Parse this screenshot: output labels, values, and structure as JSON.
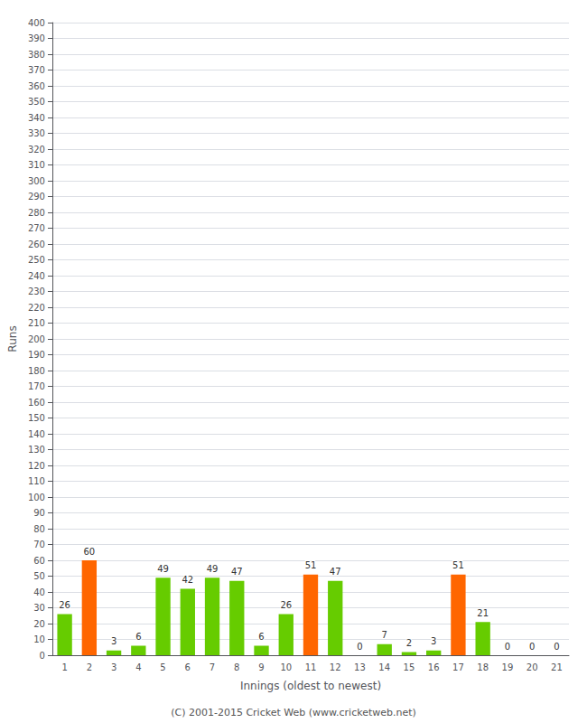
{
  "chart_data": {
    "type": "bar",
    "xlabel": "Innings (oldest to newest)",
    "ylabel": "Runs",
    "categories": [
      "1",
      "2",
      "3",
      "4",
      "5",
      "6",
      "7",
      "8",
      "9",
      "10",
      "11",
      "12",
      "13",
      "14",
      "15",
      "16",
      "17",
      "18",
      "19",
      "20",
      "21"
    ],
    "values": [
      26,
      60,
      3,
      6,
      49,
      42,
      49,
      47,
      6,
      26,
      51,
      47,
      0,
      7,
      2,
      3,
      51,
      21,
      0,
      0,
      0
    ],
    "colors": [
      "#66cc00",
      "#ff6600",
      "#66cc00",
      "#66cc00",
      "#66cc00",
      "#66cc00",
      "#66cc00",
      "#66cc00",
      "#66cc00",
      "#66cc00",
      "#ff6600",
      "#66cc00",
      "#66cc00",
      "#66cc00",
      "#66cc00",
      "#66cc00",
      "#ff6600",
      "#66cc00",
      "#66cc00",
      "#66cc00",
      "#66cc00"
    ],
    "ylim": [
      0,
      400
    ],
    "yticks": [
      0,
      10,
      20,
      30,
      40,
      50,
      60,
      70,
      80,
      90,
      100,
      110,
      120,
      130,
      140,
      150,
      160,
      170,
      180,
      190,
      200,
      210,
      220,
      230,
      240,
      250,
      260,
      270,
      280,
      290,
      300,
      310,
      320,
      330,
      340,
      350,
      360,
      370,
      380,
      390,
      400
    ],
    "grid": true,
    "data_labels": true,
    "annotations": [
      "(C) 2001-2015 Cricket Web (www.cricketweb.net)"
    ]
  }
}
